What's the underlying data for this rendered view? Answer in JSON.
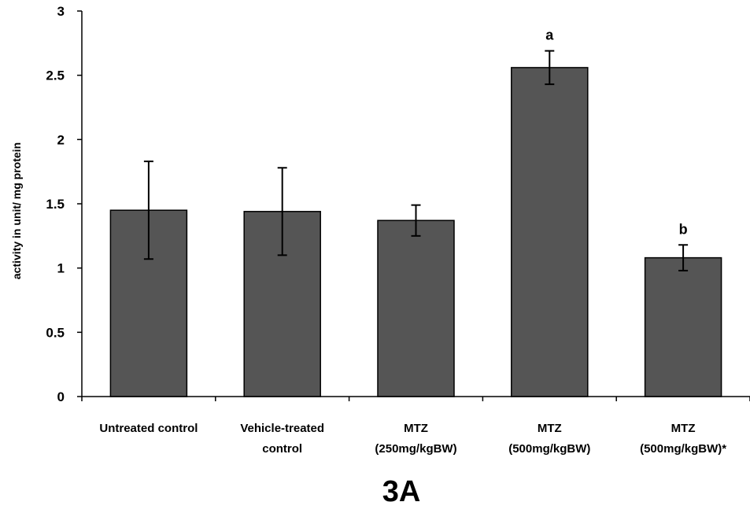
{
  "chart_data": {
    "type": "bar",
    "title": "",
    "caption": "3A",
    "xlabel": "",
    "ylabel": "activity in unit/ mg protein",
    "ylim": [
      0,
      3
    ],
    "yticks": [
      "0",
      "0.5",
      "1",
      "1.5",
      "2",
      "2.5",
      "3"
    ],
    "grid": false,
    "legend": "none",
    "categories": [
      [
        "Untreated control"
      ],
      [
        "Vehicle-treated",
        "control"
      ],
      [
        "MTZ",
        "(250mg/kgBW)"
      ],
      [
        "MTZ",
        "(500mg/kgBW)"
      ],
      [
        "MTZ",
        "(500mg/kgBW)*"
      ]
    ],
    "values": [
      1.45,
      1.44,
      1.37,
      2.56,
      1.08
    ],
    "error": [
      0.38,
      0.34,
      0.12,
      0.13,
      0.1
    ],
    "significance": [
      "",
      "",
      "",
      "a",
      "b"
    ],
    "colors": {
      "bar_fill": "#555555",
      "bar_stroke": "#000000",
      "axis": "#000000"
    }
  }
}
